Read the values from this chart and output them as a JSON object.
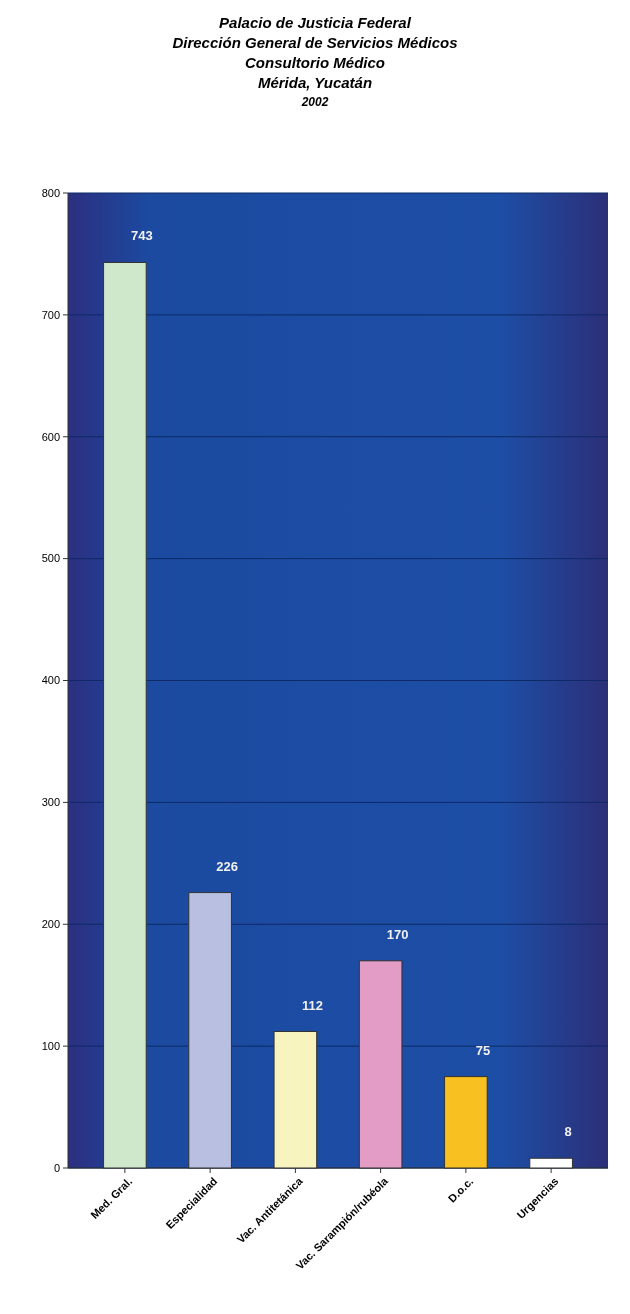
{
  "chart_data": {
    "type": "bar",
    "title": "Palacio de Justicia Federal\nDirección General de Servicios Médicos\nConsultorio Médico\nMérida, Yucatán",
    "subtitle": "2002",
    "categories": [
      "Med. Gral.",
      "Especialidad",
      "Vac. Antitetánica",
      "Vac. Sarampión/rubéola",
      "D.o.c.",
      "Urgencias"
    ],
    "values": [
      743,
      226,
      112,
      170,
      75,
      8
    ],
    "colors": [
      "#cfe8cc",
      "#b8bfe0",
      "#f8f4c0",
      "#e29cc6",
      "#f8c020",
      "#ffffff"
    ],
    "ylim": [
      0,
      800
    ],
    "yticks": [
      0,
      100,
      200,
      300,
      400,
      500,
      600,
      700,
      800
    ],
    "grid": "y",
    "data_labels": true
  }
}
